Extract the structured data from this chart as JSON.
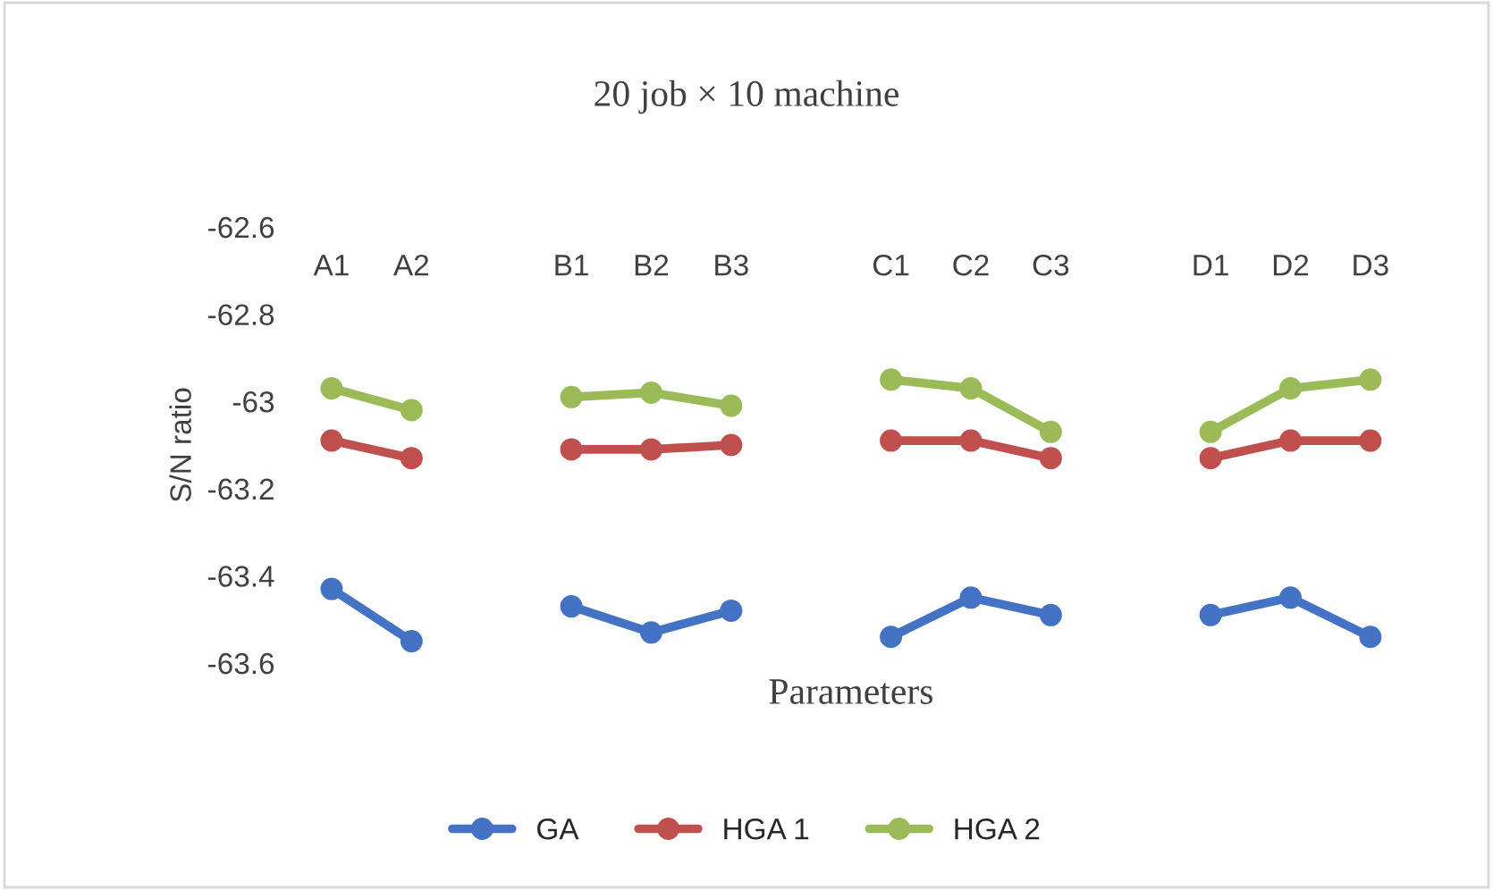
{
  "chart_data": {
    "type": "line",
    "title": "20 job × 10 machine",
    "xlabel": "Parameters",
    "ylabel": "S/N ratio",
    "categories": [
      "A1",
      "A2",
      null,
      "B1",
      "B2",
      "B3",
      null,
      "C1",
      "C2",
      "C3",
      null,
      "D1",
      "D2",
      "D3"
    ],
    "series": [
      {
        "name": "GA",
        "color": "#4472c4",
        "values": [
          -63.43,
          -63.55,
          null,
          -63.47,
          -63.53,
          -63.48,
          null,
          -63.54,
          -63.45,
          -63.49,
          null,
          -63.49,
          -63.45,
          -63.54
        ]
      },
      {
        "name": "HGA 1",
        "color": "#c0504d",
        "values": [
          -63.09,
          -63.13,
          null,
          -63.11,
          -63.11,
          -63.1,
          null,
          -63.09,
          -63.09,
          -63.13,
          null,
          -63.13,
          -63.09,
          -63.09
        ]
      },
      {
        "name": "HGA 2",
        "color": "#9bbb59",
        "values": [
          -62.97,
          -63.02,
          null,
          -62.99,
          -62.98,
          -63.01,
          null,
          -62.95,
          -62.97,
          -63.07,
          null,
          -63.07,
          -62.97,
          -62.95
        ]
      }
    ],
    "ylim": [
      -63.6,
      -62.6
    ],
    "yticks": [
      -62.6,
      -62.8,
      -63,
      -63.2,
      -63.4,
      -63.6
    ],
    "grid": false,
    "legend": "bottom",
    "marker": "circle",
    "line_style": "solid"
  }
}
